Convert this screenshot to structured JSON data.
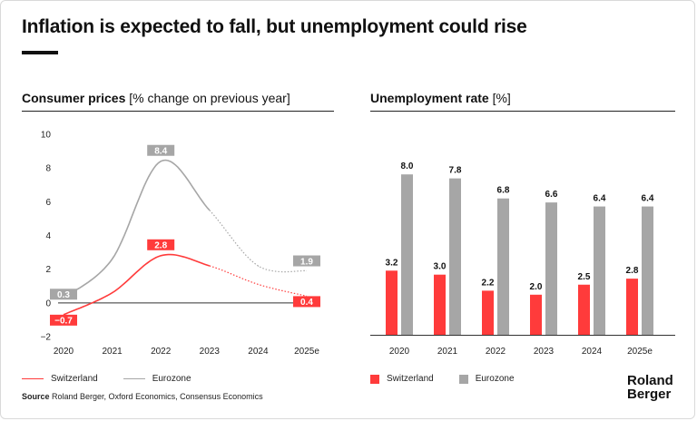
{
  "title": "Inflation is expected to fall, but unemployment could rise",
  "left_chart": {
    "title": "Consumer prices",
    "unit": "[% change on previous year]"
  },
  "right_chart": {
    "title": "Unemployment rate",
    "unit": "[%]"
  },
  "legend": {
    "switzerland": "Switzerland",
    "eurozone": "Eurozone"
  },
  "source": {
    "label": "Source",
    "text": " Roland Berger, Oxford Economics, Consensus Economics"
  },
  "logo": {
    "line1": "Roland",
    "line2": "Berger"
  },
  "colors": {
    "switzerland": "#ff3b3b",
    "eurozone": "#a6a6a6",
    "text": "#111111"
  },
  "chart_data": [
    {
      "type": "line",
      "title": "Consumer prices",
      "ylabel": "[% change on previous year]",
      "x": [
        "2020",
        "2021",
        "2022",
        "2023",
        "2024",
        "2025e"
      ],
      "ylim": [
        -2,
        10
      ],
      "yticks": [
        -2,
        0,
        2,
        4,
        6,
        8,
        10
      ],
      "forecast_from": "2023",
      "series": [
        {
          "name": "Switzerland",
          "values": [
            -0.7,
            0.6,
            2.8,
            2.2,
            1.1,
            0.4
          ],
          "labels": {
            "2020": "-0.7",
            "2022": "2.8",
            "2025e": "0.4"
          }
        },
        {
          "name": "Eurozone",
          "values": [
            0.3,
            2.6,
            8.4,
            5.5,
            2.2,
            1.9
          ],
          "labels": {
            "2020": "0.3",
            "2022": "8.4",
            "2025e": "1.9"
          }
        }
      ]
    },
    {
      "type": "bar",
      "title": "Unemployment rate",
      "ylabel": "[%]",
      "categories": [
        "2020",
        "2021",
        "2022",
        "2023",
        "2024",
        "2025e"
      ],
      "ylim": [
        0,
        10
      ],
      "series": [
        {
          "name": "Switzerland",
          "values": [
            3.2,
            3.0,
            2.2,
            2.0,
            2.5,
            2.8
          ],
          "labels": [
            "3.2",
            "3.0",
            "2.2",
            "2.0",
            "2.5",
            "2.8"
          ]
        },
        {
          "name": "Eurozone",
          "values": [
            8.0,
            7.8,
            6.8,
            6.6,
            6.4,
            6.4
          ],
          "labels": [
            "8.0",
            "7.8",
            "6.8",
            "6.6",
            "6.4",
            "6.4"
          ]
        }
      ]
    }
  ]
}
